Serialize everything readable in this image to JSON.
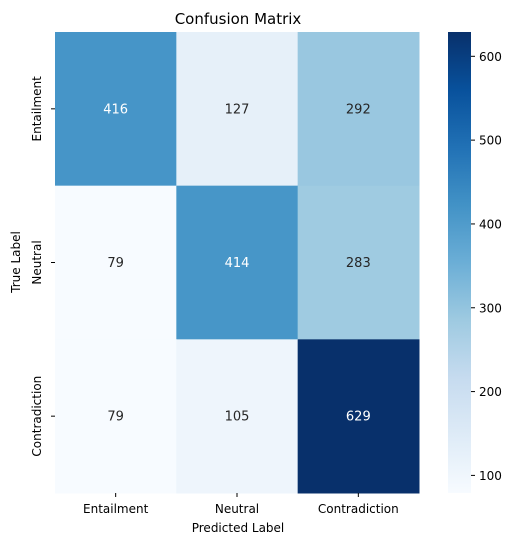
{
  "chart_data": {
    "type": "heatmap",
    "title": "Confusion Matrix",
    "xlabel": "Predicted Label",
    "ylabel": "True Label",
    "x_categories": [
      "Entailment",
      "Neutral",
      "Contradiction"
    ],
    "y_categories": [
      "Entailment",
      "Neutral",
      "Contradiction"
    ],
    "values": [
      [
        416,
        127,
        292
      ],
      [
        79,
        414,
        283
      ],
      [
        79,
        105,
        629
      ]
    ],
    "colormap": "Blues",
    "vmin": 79,
    "vmax": 629,
    "colorbar_ticks": [
      "100",
      "200",
      "300",
      "400",
      "500",
      "600"
    ],
    "colorbar_tick_values": [
      100,
      200,
      300,
      400,
      500,
      600
    ]
  }
}
